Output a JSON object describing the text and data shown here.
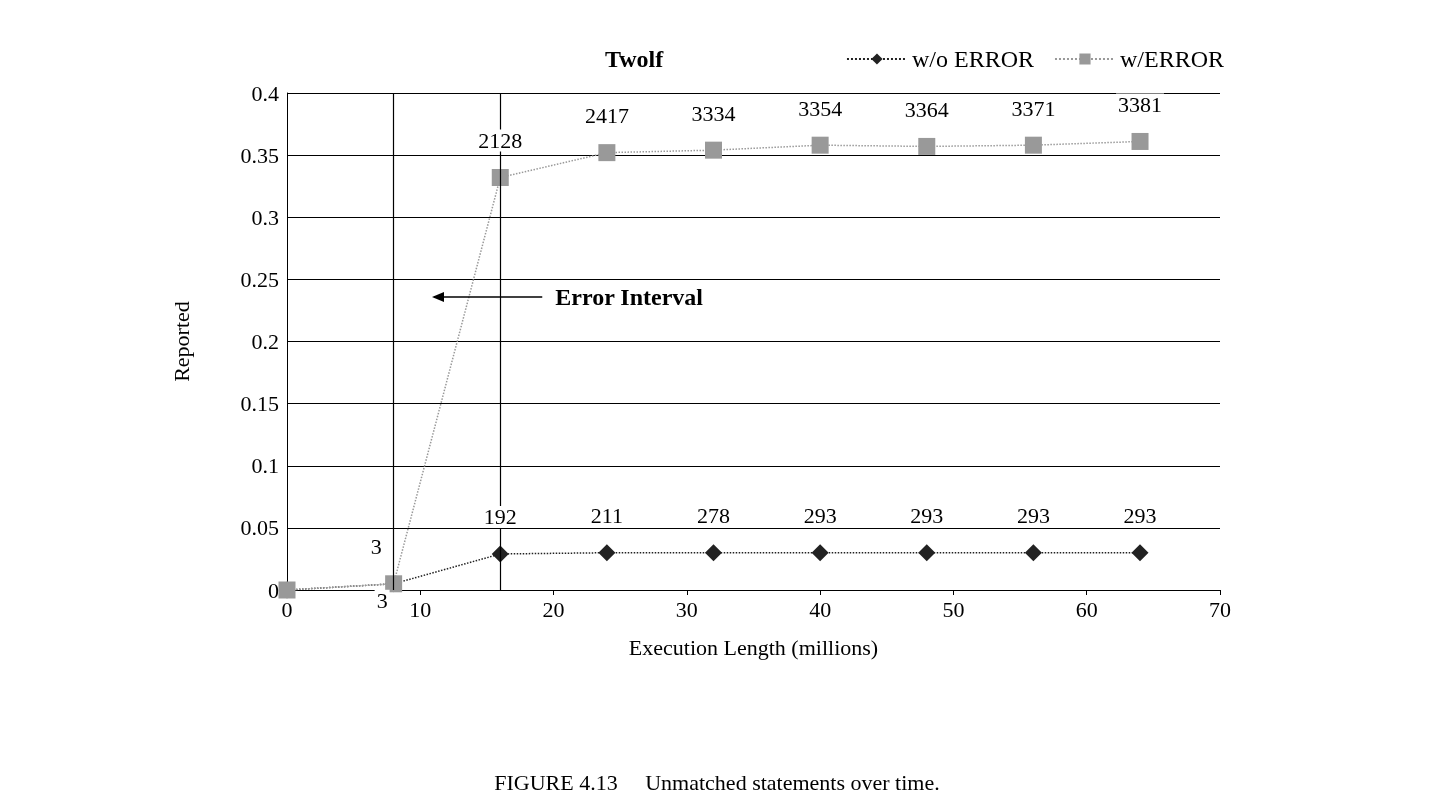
{
  "chart_data": {
    "type": "line",
    "title": "Twolf",
    "xlabel": "Execution Length (millions)",
    "ylabel": "Reported",
    "x": [
      0,
      8,
      16,
      24,
      32,
      40,
      48,
      56,
      64
    ],
    "series": [
      {
        "name": "w/o ERROR",
        "color": "#222222",
        "marker": "diamond",
        "values": [
          0,
          0.005,
          0.029,
          0.03,
          0.03,
          0.03,
          0.03,
          0.03,
          0.03
        ]
      },
      {
        "name": "w/ERROR",
        "color": "#999999",
        "marker": "square",
        "values": [
          0,
          0.005,
          0.332,
          0.352,
          0.354,
          0.358,
          0.357,
          0.358,
          0.361
        ]
      }
    ],
    "xlim": [
      0,
      70
    ],
    "xticks": [
      0,
      10,
      20,
      30,
      40,
      50,
      60,
      70
    ],
    "ylim": [
      0,
      0.4
    ],
    "yticks": [
      0,
      0.05,
      0.1,
      0.15,
      0.2,
      0.25,
      0.3,
      0.35,
      0.4
    ],
    "grid": "y",
    "legend": "top right",
    "line_style": "dotted",
    "ref_lines": [
      {
        "axis": "x",
        "value": 8,
        "color": "#000000"
      },
      {
        "axis": "x",
        "value": 16,
        "color": "#000000"
      }
    ],
    "annotations": [
      {
        "text": "3",
        "x": 8,
        "y": 0.005
      },
      {
        "text": "2128",
        "x": 16,
        "y": 0.332
      },
      {
        "text": "2417",
        "x": 24,
        "y": 0.352
      },
      {
        "text": "3334",
        "x": 32,
        "y": 0.354
      },
      {
        "text": "3354",
        "x": 40,
        "y": 0.358
      },
      {
        "text": "3364",
        "x": 48,
        "y": 0.357
      },
      {
        "text": "3371",
        "x": 56,
        "y": 0.358
      },
      {
        "text": "3381",
        "x": 64,
        "y": 0.361
      },
      {
        "text": "3",
        "x": 8,
        "y": 0.005
      },
      {
        "text": "192",
        "x": 16,
        "y": 0.029
      },
      {
        "text": "211",
        "x": 24,
        "y": 0.03
      },
      {
        "text": "278",
        "x": 32,
        "y": 0.03
      },
      {
        "text": "293",
        "x": 40,
        "y": 0.03
      },
      {
        "text": "293",
        "x": 48,
        "y": 0.03
      },
      {
        "text": "293",
        "x": 56,
        "y": 0.03
      },
      {
        "text": "293",
        "x": 64,
        "y": 0.03
      },
      "Error Interval",
      "FIGURE 4.13     Unmatched statements over time."
    ]
  }
}
